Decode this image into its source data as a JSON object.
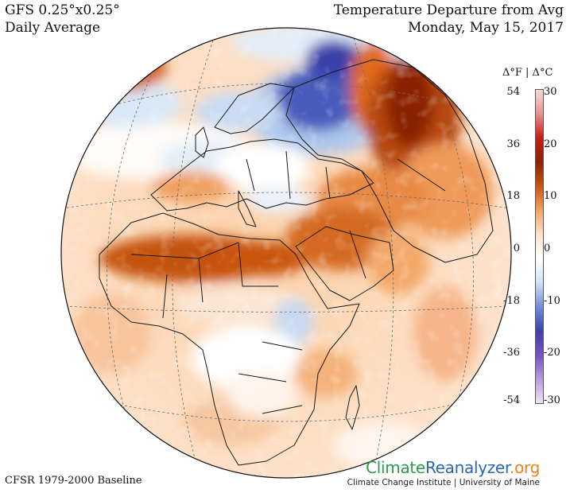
{
  "header": {
    "left_line1": "GFS 0.25°x0.25°",
    "left_line2": "Daily Average",
    "right_line1": "Temperature Departure from Avg",
    "right_line2": "Monday, May 15, 2017"
  },
  "footer": {
    "baseline": "CFSR 1979-2000 Baseline",
    "brand_part1": "Climate",
    "brand_part2": "Reanalyzer",
    "brand_part3": ".org",
    "institution": "Climate Change Institute | University of Maine"
  },
  "legend": {
    "header": "Δ°F  |  Δ°C",
    "fahrenheit_ticks": [
      "54",
      "36",
      "18",
      "0",
      "-18",
      "-36",
      "-54"
    ],
    "celsius_ticks": [
      "30",
      "20",
      "10",
      "0",
      "-10",
      "-20",
      "-30"
    ],
    "colors": [
      "#f6dada",
      "#e99090",
      "#c81b12",
      "#8a2204",
      "#c95410",
      "#f1a364",
      "#fde3cc",
      "#ffffff",
      "#cfe1f5",
      "#6f8fd7",
      "#3e3fae",
      "#7652b9",
      "#b79bde",
      "#efe4f5"
    ]
  },
  "colors": {
    "ocean_base": "#fcd8b8",
    "warm_strong": "#c14c09",
    "warm_very": "#8b2103",
    "cold": "#3947ad",
    "cold_light": "#d6e6f6",
    "brand_green": "#2f9a4a",
    "brand_blue": "#2a67b0",
    "brand_orange": "#e7841b"
  }
}
